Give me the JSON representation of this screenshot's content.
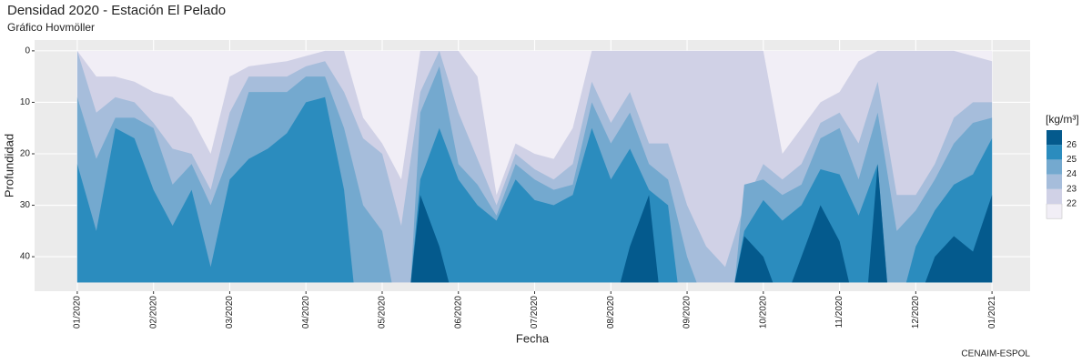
{
  "chart_data": {
    "type": "hovmoller",
    "title": "Densidad 2020 - Estación El Pelado",
    "subtitle": "Gráfico Hovmöller",
    "x_label": "Fecha",
    "y_label": "Profundidad",
    "caption": "CENAIM-ESPOL",
    "legend_title": "[kg/m³]",
    "low_color": "#f1eef6",
    "panel_color": "#ebebeb",
    "grid": true,
    "y_reversed": true,
    "depth_range": [
      0,
      45
    ],
    "xlim": [
      -0.56,
      12.5
    ],
    "ylim": [
      -2.1,
      46.7
    ],
    "xticks": [
      {
        "value": 0,
        "label": "01/2020"
      },
      {
        "value": 1,
        "label": "02/2020"
      },
      {
        "value": 2,
        "label": "03/2020"
      },
      {
        "value": 3,
        "label": "04/2020"
      },
      {
        "value": 4,
        "label": "05/2020"
      },
      {
        "value": 5,
        "label": "06/2020"
      },
      {
        "value": 6,
        "label": "07/2020"
      },
      {
        "value": 7,
        "label": "08/2020"
      },
      {
        "value": 8,
        "label": "09/2020"
      },
      {
        "value": 9,
        "label": "10/2020"
      },
      {
        "value": 10,
        "label": "11/2020"
      },
      {
        "value": 11,
        "label": "12/2020"
      },
      {
        "value": 12,
        "label": "01/2021"
      }
    ],
    "yticks": [
      0,
      10,
      20,
      30,
      40
    ],
    "x": [
      0,
      0.25,
      0.5,
      0.75,
      1,
      1.25,
      1.5,
      1.75,
      2,
      2.25,
      2.5,
      2.75,
      3,
      3.25,
      3.5,
      3.75,
      4,
      4.25,
      4.5,
      4.75,
      5,
      5.25,
      5.5,
      5.75,
      6,
      6.25,
      6.5,
      6.75,
      7,
      7.25,
      7.5,
      7.75,
      8,
      8.25,
      8.5,
      8.75,
      9,
      9.25,
      9.5,
      9.75,
      10,
      10.25,
      10.5,
      10.75,
      11,
      11.25,
      11.5,
      11.75,
      12
    ],
    "series": [
      {
        "name": "22",
        "color": "#d0d1e6",
        "values": [
          0,
          5,
          5,
          6,
          8,
          9,
          13,
          20,
          5,
          3,
          2.5,
          2,
          1,
          0,
          0,
          13,
          18,
          25,
          0,
          0,
          0,
          5,
          28,
          18,
          20,
          21,
          15,
          0,
          0,
          0,
          0,
          0,
          0,
          0,
          0,
          0,
          0,
          20,
          15,
          10,
          8,
          2,
          0,
          0,
          0,
          0,
          0,
          1,
          2
        ]
      },
      {
        "name": "23",
        "color": "#a6bddb",
        "values": [
          0,
          12,
          9,
          10,
          14,
          19,
          20,
          27,
          12,
          5,
          5,
          5,
          3,
          2,
          8,
          17,
          20,
          34,
          8,
          0,
          12,
          21,
          30,
          20,
          23,
          25,
          22,
          6,
          14,
          8,
          18,
          18,
          30,
          38,
          42,
          30,
          22,
          25,
          22,
          14,
          12,
          18,
          6,
          28,
          28,
          22,
          13,
          10,
          10
        ]
      },
      {
        "name": "24",
        "color": "#74a9cf",
        "values": [
          9,
          21,
          13,
          13,
          15,
          26,
          22,
          30,
          20,
          8,
          8,
          8,
          5,
          5,
          15,
          30,
          35,
          null,
          12,
          3,
          22,
          26,
          32,
          22,
          25,
          27,
          26,
          10,
          18,
          12,
          22,
          25,
          40,
          null,
          null,
          26,
          25,
          28,
          26,
          17,
          15,
          25,
          12,
          35,
          31,
          25,
          18,
          14,
          13
        ]
      },
      {
        "name": "25",
        "color": "#2b8cbe",
        "values": [
          22,
          35,
          15,
          17,
          27,
          34,
          27,
          42,
          25,
          21,
          19,
          16,
          10,
          9,
          27,
          null,
          null,
          null,
          25,
          15,
          25,
          30,
          33,
          25,
          29,
          30,
          28,
          15,
          25,
          19,
          27,
          30,
          null,
          null,
          null,
          35,
          29,
          33,
          30,
          23,
          24,
          32,
          22,
          null,
          38,
          31,
          26,
          24,
          17
        ]
      },
      {
        "name": "26",
        "color": "#045a8d",
        "values": [
          null,
          null,
          null,
          null,
          null,
          null,
          null,
          null,
          null,
          null,
          null,
          null,
          null,
          null,
          null,
          null,
          null,
          null,
          28,
          38,
          null,
          null,
          null,
          null,
          null,
          null,
          null,
          null,
          null,
          38,
          28,
          null,
          null,
          null,
          null,
          36,
          40,
          null,
          40,
          30,
          37,
          null,
          22,
          null,
          null,
          40,
          36,
          39,
          28
        ]
      }
    ]
  }
}
